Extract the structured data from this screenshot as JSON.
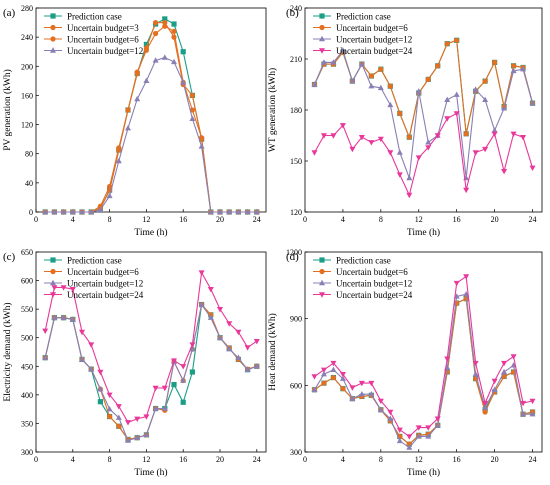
{
  "figure": {
    "legend_colors": {
      "Prediction case": "#1a9e86",
      "Uncertain budget=3": "#e46f20",
      "Uncertain budget=6": "#e46f20",
      "Uncertain budget=12": "#8a7fb5",
      "Uncertain budget=24": "#e9379a"
    },
    "markers": {
      "Prediction case": "square",
      "Uncertain budget=3": "circle",
      "Uncertain budget=6": "circle",
      "Uncertain budget=12": "triangle",
      "Uncertain budget=24": "triangle-down"
    }
  },
  "chart_data": [
    {
      "panel": "(a)",
      "type": "line",
      "xlabel": "Time (h)",
      "ylabel": "PV generation (kWh)",
      "xlim": [
        0,
        25
      ],
      "ylim": [
        0,
        280
      ],
      "xticks": [
        0,
        4,
        8,
        12,
        16,
        20,
        24
      ],
      "yticks": [
        0,
        40,
        80,
        120,
        160,
        200,
        240,
        280
      ],
      "legend_position": "top-left",
      "x": [
        1,
        2,
        3,
        4,
        5,
        6,
        7,
        8,
        9,
        10,
        11,
        12,
        13,
        14,
        15,
        16,
        17,
        18,
        19,
        20,
        21,
        22,
        23,
        24
      ],
      "series": [
        {
          "name": "Prediction case",
          "values": [
            0,
            0,
            0,
            0,
            0,
            0,
            5,
            30,
            85,
            140,
            190,
            230,
            258,
            265,
            258,
            220,
            160,
            100,
            0,
            0,
            0,
            0,
            0,
            0
          ]
        },
        {
          "name": "Uncertain budget=3",
          "values": [
            0,
            0,
            0,
            0,
            0,
            0,
            5,
            30,
            85,
            140,
            190,
            225,
            260,
            260,
            240,
            175,
            160,
            100,
            0,
            0,
            0,
            0,
            0,
            0
          ]
        },
        {
          "name": "Uncertain budget=6",
          "values": [
            0,
            0,
            0,
            0,
            0,
            0,
            8,
            35,
            88,
            140,
            192,
            222,
            245,
            255,
            248,
            178,
            140,
            102,
            0,
            0,
            0,
            0,
            0,
            0
          ]
        },
        {
          "name": "Uncertain budget=12",
          "values": [
            0,
            0,
            0,
            0,
            0,
            0,
            3,
            22,
            70,
            115,
            155,
            180,
            208,
            212,
            206,
            178,
            128,
            90,
            0,
            0,
            0,
            0,
            0,
            0
          ]
        }
      ]
    },
    {
      "panel": "(b)",
      "type": "line",
      "xlabel": "Time (h)",
      "ylabel": "WT generation (kWh)",
      "xlim": [
        0,
        25
      ],
      "ylim": [
        120,
        240
      ],
      "xticks": [
        0,
        4,
        8,
        12,
        16,
        20,
        24
      ],
      "yticks": [
        120,
        150,
        180,
        210,
        240
      ],
      "legend_position": "top-left",
      "x": [
        1,
        2,
        3,
        4,
        5,
        6,
        7,
        8,
        9,
        10,
        11,
        12,
        13,
        14,
        15,
        16,
        17,
        18,
        19,
        20,
        21,
        22,
        23,
        24
      ],
      "series": [
        {
          "name": "Prediction case",
          "values": [
            195,
            207,
            207,
            214,
            197,
            207,
            200,
            204,
            194,
            178,
            164,
            190,
            198,
            206,
            219,
            221,
            166,
            191,
            197,
            208,
            182,
            206,
            205,
            184
          ]
        },
        {
          "name": "Uncertain budget=6",
          "values": [
            195,
            207,
            207,
            214,
            197,
            207,
            200,
            204,
            194,
            178,
            164,
            190,
            198,
            206,
            219,
            221,
            166,
            191,
            197,
            208,
            182,
            206,
            205,
            184
          ]
        },
        {
          "name": "Uncertain budget=12",
          "values": [
            195,
            208,
            208,
            215,
            197,
            207,
            194,
            193,
            183,
            155,
            140,
            191,
            161,
            165,
            186,
            189,
            140,
            192,
            186,
            168,
            181,
            203,
            204,
            184
          ]
        },
        {
          "name": "Uncertain budget=24",
          "values": [
            155,
            165,
            165,
            171,
            157,
            164,
            161,
            163,
            155,
            142,
            130,
            152,
            158,
            165,
            175,
            178,
            133,
            155,
            157,
            166,
            144,
            166,
            164,
            146
          ]
        }
      ]
    },
    {
      "panel": "(c)",
      "type": "line",
      "xlabel": "Time (h)",
      "ylabel": "Electricity demand (kWh)",
      "xlim": [
        0,
        25
      ],
      "ylim": [
        300,
        650
      ],
      "xticks": [
        0,
        4,
        8,
        12,
        16,
        20,
        24
      ],
      "yticks": [
        300,
        350,
        400,
        450,
        500,
        550,
        600,
        650
      ],
      "legend_position": "top-left",
      "x": [
        1,
        2,
        3,
        4,
        5,
        6,
        7,
        8,
        9,
        10,
        11,
        12,
        13,
        14,
        15,
        16,
        17,
        18,
        19,
        20,
        21,
        22,
        23,
        24
      ],
      "series": [
        {
          "name": "Prediction case",
          "values": [
            465,
            535,
            535,
            532,
            462,
            445,
            388,
            362,
            345,
            322,
            325,
            330,
            376,
            376,
            418,
            387,
            440,
            558,
            540,
            500,
            482,
            462,
            444,
            450
          ]
        },
        {
          "name": "Uncertain budget=6",
          "values": [
            465,
            535,
            535,
            532,
            462,
            445,
            410,
            362,
            345,
            322,
            325,
            330,
            376,
            373,
            458,
            425,
            480,
            558,
            540,
            500,
            482,
            462,
            445,
            450
          ]
        },
        {
          "name": "Uncertain budget=12",
          "values": [
            465,
            535,
            535,
            532,
            462,
            445,
            410,
            375,
            360,
            320,
            325,
            330,
            376,
            376,
            458,
            425,
            480,
            558,
            535,
            500,
            480,
            465,
            444,
            450
          ]
        },
        {
          "name": "Uncertain budget=24",
          "values": [
            512,
            588,
            588,
            585,
            510,
            488,
            440,
            400,
            380,
            352,
            358,
            362,
            412,
            412,
            460,
            450,
            488,
            614,
            585,
            550,
            525,
            510,
            483,
            494
          ]
        }
      ]
    },
    {
      "panel": "(d)",
      "type": "line",
      "xlabel": "Time (h)",
      "ylabel": "Heat demand (kWh)",
      "xlim": [
        0,
        25
      ],
      "ylim": [
        300,
        1200
      ],
      "xticks": [
        0,
        4,
        8,
        12,
        16,
        20,
        24
      ],
      "yticks": [
        300,
        600,
        900,
        1200
      ],
      "legend_position": "top-left",
      "x": [
        1,
        2,
        3,
        4,
        5,
        6,
        7,
        8,
        9,
        10,
        11,
        12,
        13,
        14,
        15,
        16,
        17,
        18,
        19,
        20,
        21,
        22,
        23,
        24
      ],
      "series": [
        {
          "name": "Prediction case",
          "values": [
            580,
            610,
            635,
            585,
            540,
            550,
            555,
            490,
            440,
            370,
            335,
            375,
            380,
            420,
            660,
            970,
            990,
            630,
            490,
            570,
            640,
            660,
            470,
            480
          ]
        },
        {
          "name": "Uncertain budget=6",
          "values": [
            580,
            610,
            635,
            585,
            540,
            550,
            555,
            490,
            440,
            370,
            335,
            375,
            380,
            420,
            660,
            970,
            990,
            630,
            480,
            570,
            640,
            660,
            470,
            480
          ]
        },
        {
          "name": "Uncertain budget=12",
          "values": [
            580,
            650,
            670,
            630,
            540,
            560,
            560,
            490,
            450,
            350,
            320,
            370,
            370,
            420,
            680,
            1000,
            1010,
            650,
            500,
            580,
            660,
            690,
            470,
            470
          ]
        },
        {
          "name": "Uncertain budget=24",
          "values": [
            640,
            670,
            700,
            650,
            590,
            610,
            610,
            530,
            480,
            400,
            370,
            410,
            410,
            450,
            720,
            1060,
            1090,
            700,
            520,
            620,
            700,
            730,
            520,
            530
          ]
        }
      ]
    }
  ]
}
